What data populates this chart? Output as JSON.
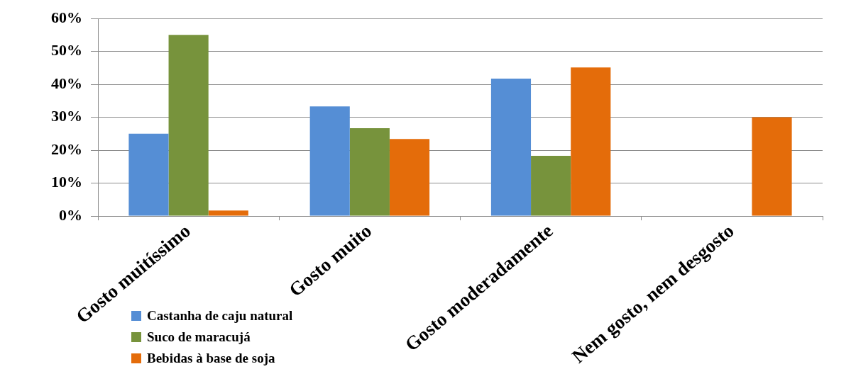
{
  "chart_data": {
    "type": "bar",
    "categories": [
      "Gosto muitíssimo",
      "Gosto muito",
      "Gosto moderadamente",
      "Nem gosto, nem desgosto"
    ],
    "series": [
      {
        "name": "Castanha de caju natural",
        "color": "#558ed5",
        "values": [
          25,
          33.3,
          41.7,
          0
        ]
      },
      {
        "name": "Suco de maracujá",
        "color": "#77933c",
        "values": [
          55,
          26.7,
          18.3,
          0
        ]
      },
      {
        "name": "Bebidas à base de soja",
        "color": "#e46c0a",
        "values": [
          1.7,
          23.4,
          45.1,
          30
        ]
      }
    ],
    "ylim": [
      0,
      60
    ],
    "yticks": [
      {
        "value": 0,
        "label": "0%"
      },
      {
        "value": 10,
        "label": "10%"
      },
      {
        "value": 20,
        "label": "20%"
      },
      {
        "value": 30,
        "label": "30%"
      },
      {
        "value": 40,
        "label": "40%"
      },
      {
        "value": 50,
        "label": "50%"
      },
      {
        "value": 60,
        "label": "60%"
      }
    ],
    "grid": "y",
    "legend": "bottom left"
  }
}
